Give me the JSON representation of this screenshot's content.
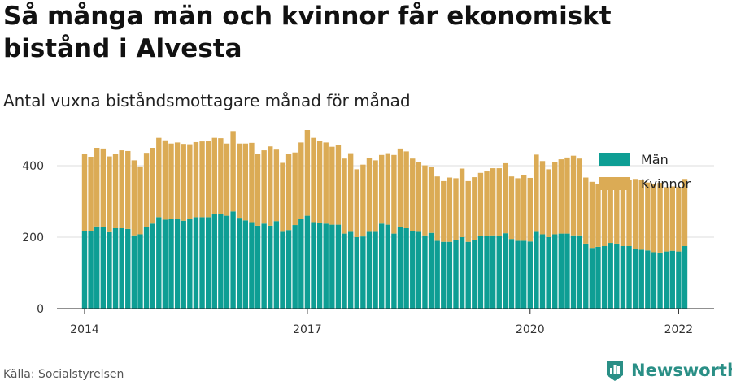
{
  "header": {
    "title": "Så många män och kvinnor får ekonomiskt bistånd i Alvesta",
    "subtitle": "Antal vuxna biståndsmottagare månad för månad"
  },
  "footer": {
    "source": "Källa: Socialstyrelsen",
    "brand": "Newsworthy"
  },
  "colors": {
    "man": "#0e9e94",
    "kvinnor": "#dbab55",
    "grid": "#dddddd",
    "brand": "#2a8f86"
  },
  "chart_data": {
    "type": "bar",
    "stacked": true,
    "x_start": "2014-01",
    "x_end": "2022-01",
    "x_ticks": [
      "2014",
      "2017",
      "2020",
      "2022"
    ],
    "y_ticks": [
      0,
      200,
      400
    ],
    "ylim": [
      0,
      500
    ],
    "legend_position": "top-right",
    "grid": true,
    "series": [
      {
        "name": "Män",
        "values": [
          218,
          217,
          230,
          228,
          214,
          225,
          225,
          223,
          205,
          208,
          228,
          238,
          256,
          249,
          250,
          250,
          246,
          250,
          256,
          256,
          256,
          265,
          265,
          260,
          272,
          252,
          247,
          242,
          232,
          238,
          232,
          245,
          215,
          220,
          234,
          250,
          260,
          242,
          240,
          238,
          235,
          235,
          210,
          215,
          200,
          202,
          215,
          215,
          238,
          235,
          210,
          228,
          225,
          217,
          215,
          205,
          212,
          190,
          187,
          187,
          191,
          200,
          187,
          193,
          204,
          204,
          205,
          203,
          211,
          195,
          190,
          190,
          188,
          215,
          208,
          200,
          208,
          210,
          210,
          205,
          205,
          182,
          170,
          173,
          175,
          184,
          182,
          175,
          175,
          168,
          165,
          163,
          158,
          157,
          160,
          162,
          160,
          175
        ]
      },
      {
        "name": "Kvinnor",
        "values": [
          214,
          208,
          220,
          220,
          212,
          207,
          218,
          218,
          210,
          190,
          208,
          212,
          222,
          222,
          212,
          215,
          215,
          210,
          210,
          212,
          214,
          213,
          212,
          202,
          225,
          210,
          215,
          222,
          200,
          205,
          222,
          200,
          193,
          212,
          203,
          215,
          240,
          236,
          230,
          227,
          218,
          224,
          210,
          220,
          190,
          201,
          206,
          200,
          192,
          200,
          220,
          220,
          215,
          203,
          196,
          196,
          185,
          180,
          170,
          180,
          174,
          192,
          170,
          175,
          176,
          180,
          188,
          190,
          196,
          175,
          175,
          183,
          178,
          216,
          205,
          190,
          203,
          208,
          213,
          223,
          215,
          185,
          185,
          177,
          185,
          180,
          185,
          190,
          185,
          195,
          195,
          190,
          192,
          195,
          180,
          180,
          180,
          188
        ]
      }
    ]
  }
}
